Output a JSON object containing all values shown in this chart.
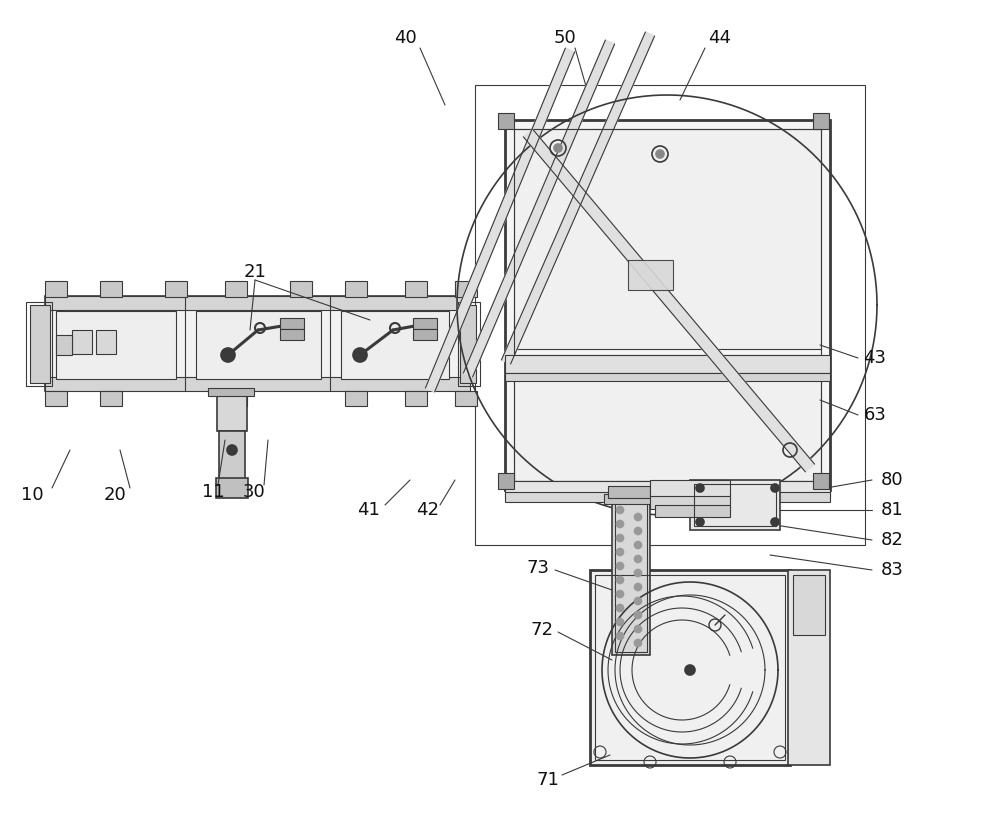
{
  "bg_color": "#ffffff",
  "lc": "#3a3a3a",
  "fig_width": 10.0,
  "fig_height": 8.39,
  "font_size": 10
}
